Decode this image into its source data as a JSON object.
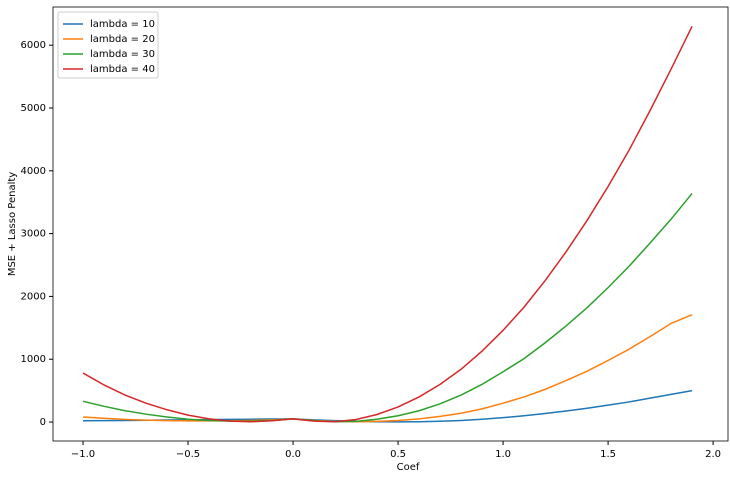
{
  "chart_data": {
    "type": "line",
    "xlabel": "Coef",
    "ylabel": "MSE + Lasso Penalty",
    "x": [
      -1.0,
      -0.9,
      -0.8,
      -0.7,
      -0.6,
      -0.5,
      -0.4,
      -0.3,
      -0.2,
      -0.1,
      0.0,
      0.1,
      0.2,
      0.3,
      0.4,
      0.5,
      0.6,
      0.7,
      0.8,
      0.9,
      1.0,
      1.1,
      1.2,
      1.3,
      1.4,
      1.5,
      1.6,
      1.7,
      1.8,
      1.9
    ],
    "series": [
      {
        "name": "lambda = 10",
        "color": "#1f77b4",
        "values": [
          20,
          22,
          25,
          28,
          32,
          35,
          38,
          42,
          45,
          48,
          50,
          35,
          22,
          12,
          5,
          3,
          5,
          12,
          25,
          45,
          70,
          100,
          135,
          175,
          220,
          270,
          320,
          380,
          440,
          500
        ]
      },
      {
        "name": "lambda = 20",
        "color": "#ff7f0e",
        "values": [
          80,
          60,
          42,
          30,
          22,
          18,
          18,
          20,
          25,
          35,
          50,
          25,
          10,
          5,
          10,
          25,
          50,
          90,
          140,
          210,
          300,
          400,
          520,
          660,
          810,
          980,
          1160,
          1360,
          1570,
          1710
        ]
      },
      {
        "name": "lambda = 30",
        "color": "#2ca02c",
        "values": [
          330,
          250,
          180,
          125,
          80,
          45,
          25,
          15,
          15,
          25,
          50,
          20,
          5,
          10,
          45,
          100,
          180,
          290,
          430,
          600,
          800,
          1010,
          1260,
          1530,
          1820,
          2140,
          2480,
          2850,
          3230,
          3640
        ]
      },
      {
        "name": "lambda = 40",
        "color": "#d62728",
        "values": [
          780,
          590,
          430,
          300,
          195,
          110,
          50,
          15,
          5,
          20,
          50,
          15,
          5,
          40,
          120,
          240,
          400,
          600,
          840,
          1130,
          1460,
          1830,
          2250,
          2710,
          3210,
          3750,
          4330,
          4960,
          5620,
          6300
        ]
      }
    ],
    "xlim": [
      -1.143,
      2.071
    ],
    "ylim": [
      -302,
      6608
    ],
    "xticks": [
      {
        "value": -1.0,
        "label": "−1.0"
      },
      {
        "value": -0.5,
        "label": "−0.5"
      },
      {
        "value": 0.0,
        "label": "0.0"
      },
      0.5,
      {
        "value": 1.0,
        "label": "1.0"
      },
      1.5,
      {
        "value": 2.0,
        "label": "2.0"
      }
    ],
    "yticks": [
      0,
      1000,
      2000,
      3000,
      4000,
      5000,
      6000
    ],
    "legend": "upper left"
  }
}
